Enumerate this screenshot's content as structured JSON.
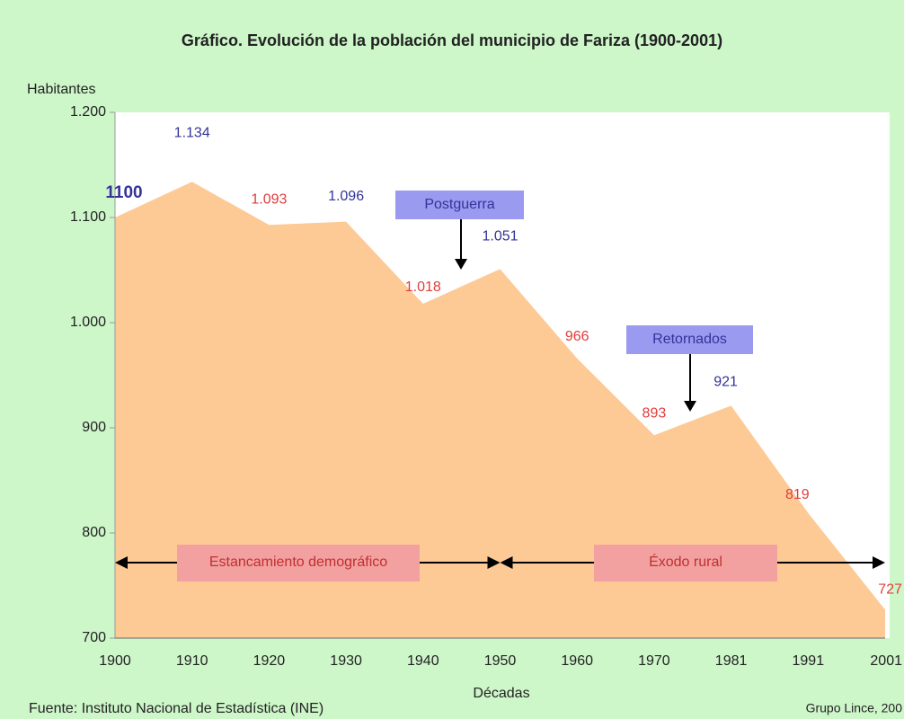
{
  "chart_data": {
    "type": "area",
    "title": "Gráfico. Evolución de la población del municipio de Fariza (1900-2001)",
    "ylabel": "Habitantes",
    "xlabel": "Décadas",
    "source": "Fuente: Instituto Nacional de Estadística (INE)",
    "credit": "Grupo Lince, 200",
    "categories": [
      "1900",
      "1910",
      "1920",
      "1930",
      "1940",
      "1950",
      "1960",
      "1970",
      "1981",
      "1991",
      "2001"
    ],
    "values": [
      1100,
      1134,
      1093,
      1096,
      1018,
      1051,
      966,
      893,
      921,
      819,
      727
    ],
    "value_labels": [
      "1100",
      "1.134",
      "1.093",
      "1.096",
      "1.018",
      "1.051",
      "966",
      "893",
      "921",
      "819",
      "727"
    ],
    "value_label_colors": [
      "#33339a",
      "#33339a",
      "#e03c3c",
      "#33339a",
      "#e03c3c",
      "#33339a",
      "#e03c3c",
      "#e03c3c",
      "#33339a",
      "#e03c3c",
      "#e03c3c"
    ],
    "color": "#fdca96",
    "ylim": [
      700,
      1200
    ],
    "yticks": [
      700,
      800,
      900,
      {
        "value": 1000,
        "label": "1.000"
      },
      {
        "value": 1100,
        "label": "1.100"
      },
      {
        "value": 1200,
        "label": "1.200"
      }
    ],
    "annotations": [
      "Postguerra",
      "Retornados"
    ],
    "periods": [
      "Estancamiento demográfico",
      "Éxodo rural"
    ]
  }
}
